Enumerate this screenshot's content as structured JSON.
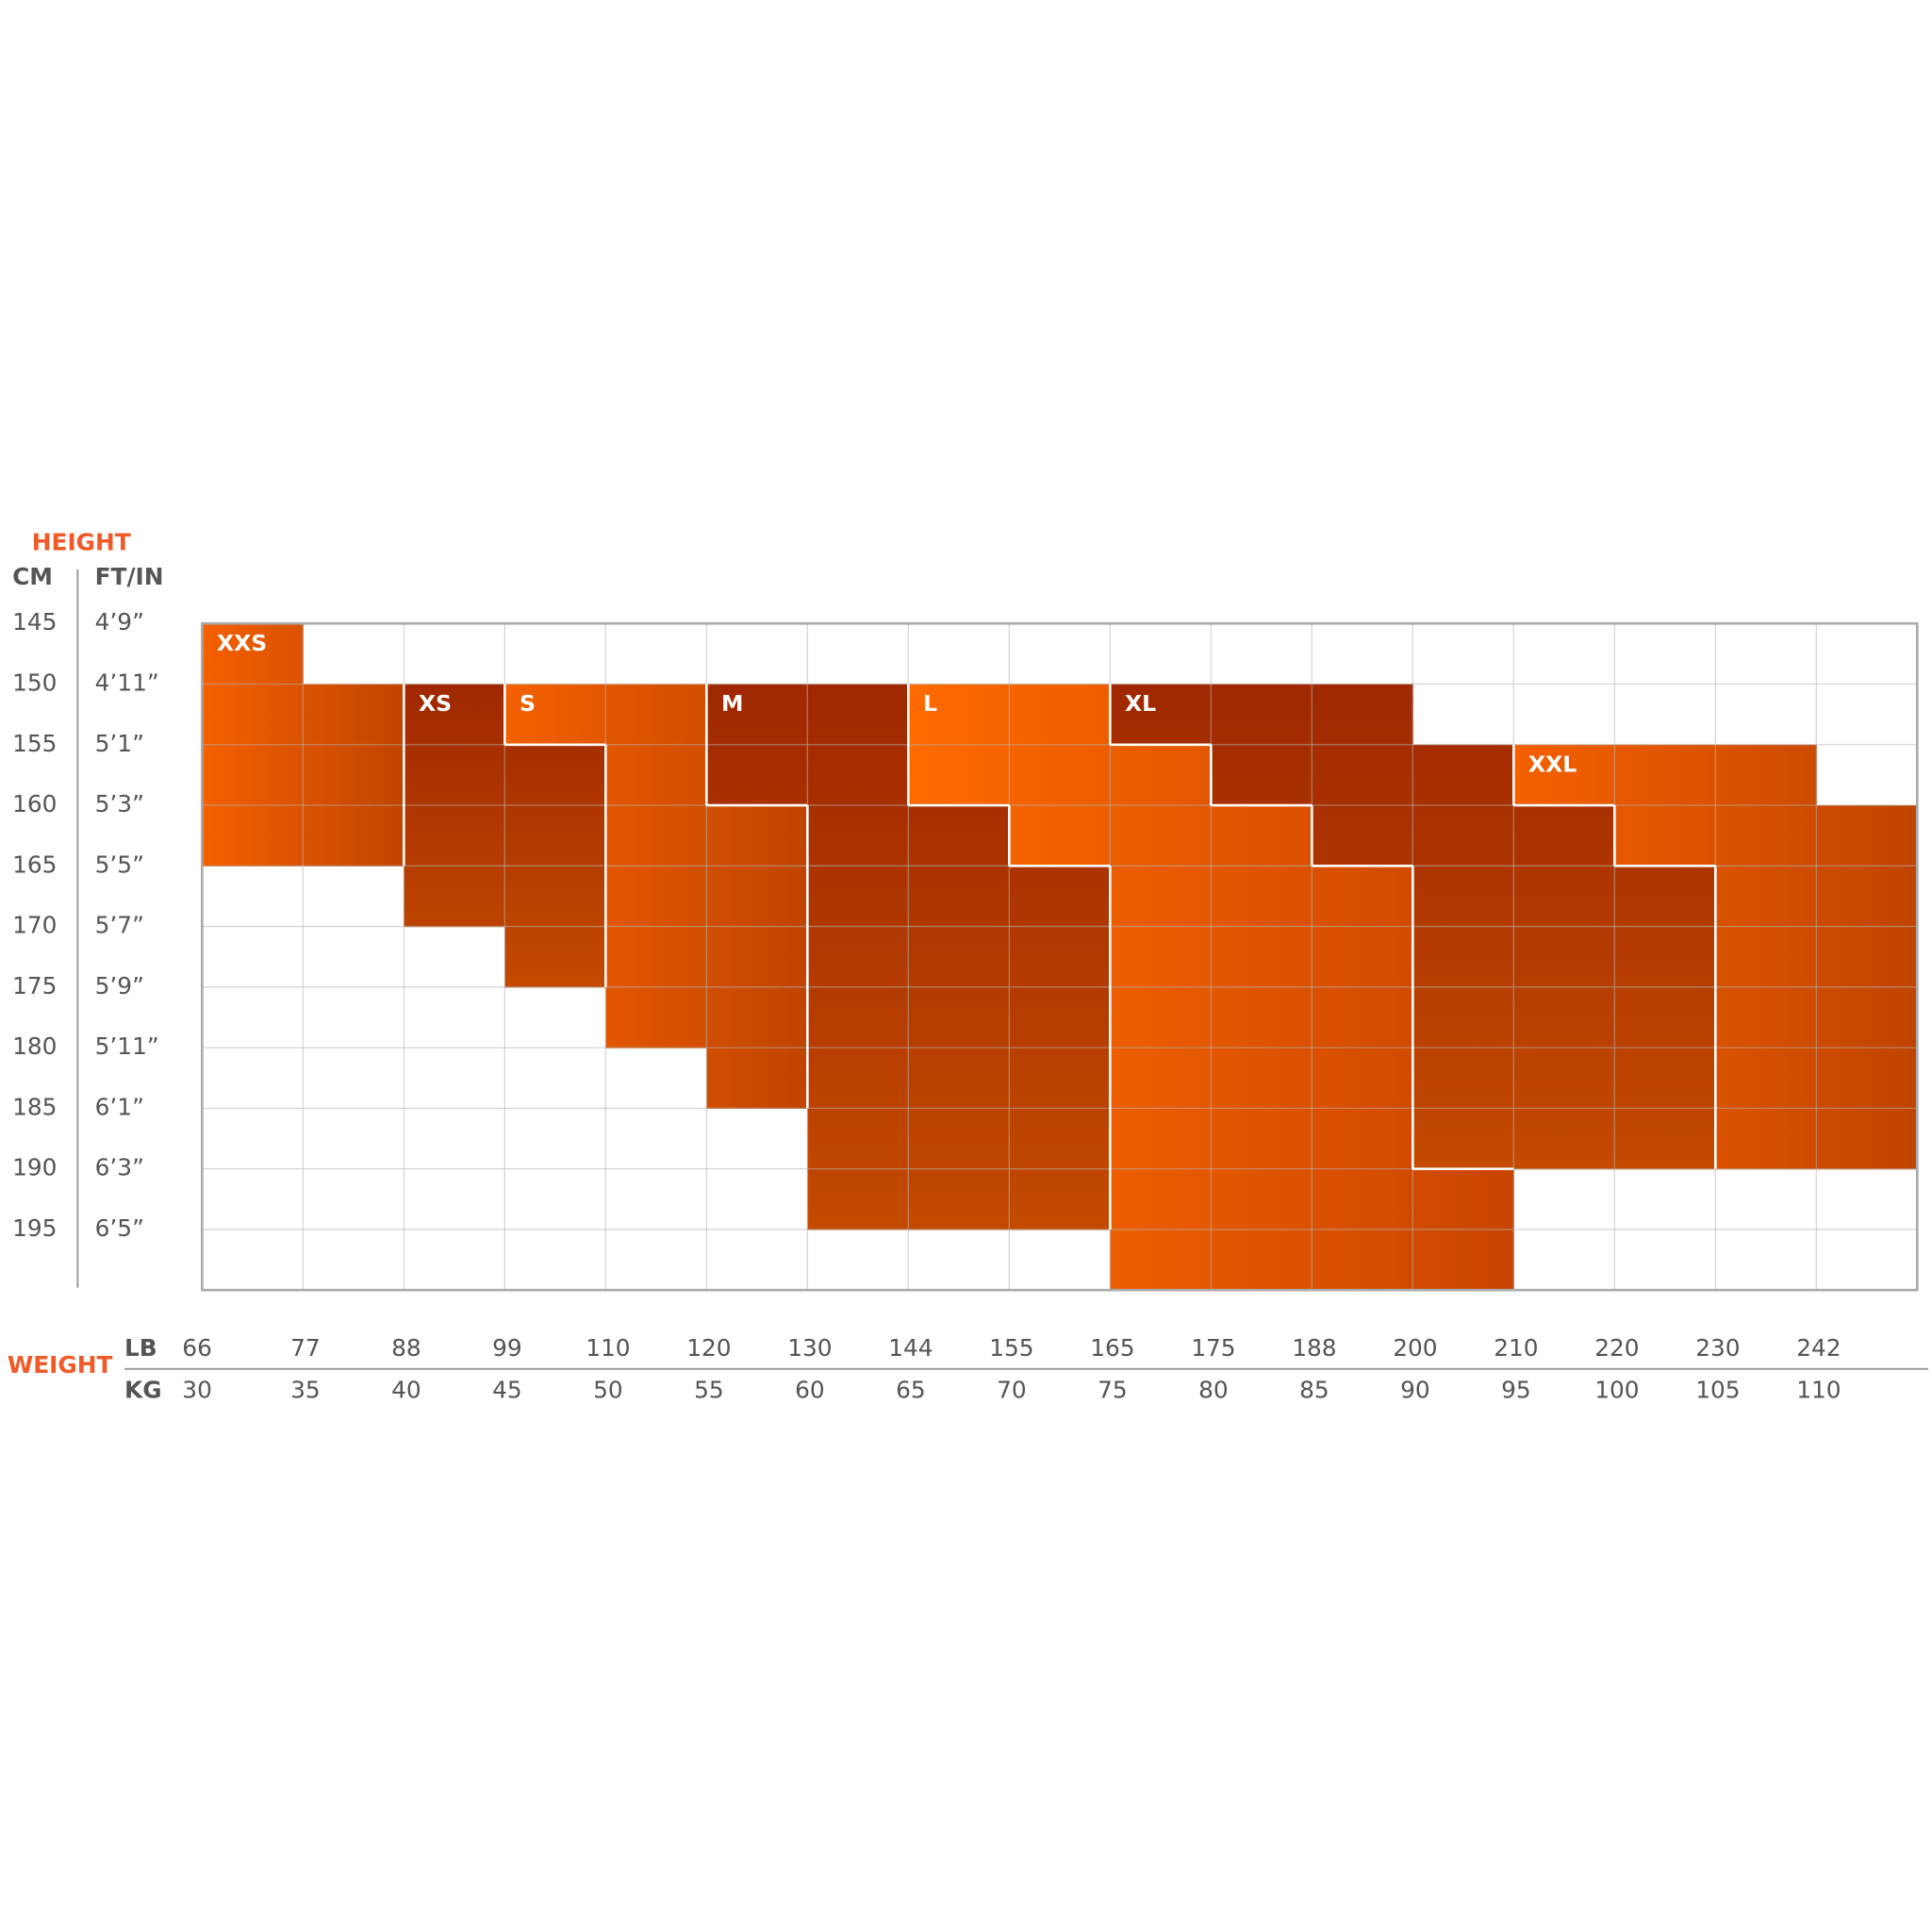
{
  "height": {
    "title": "HEIGHT",
    "cm_header": "CM",
    "ftin_header": "FT/IN",
    "rows": [
      {
        "cm": 145,
        "ftin": "4’9”"
      },
      {
        "cm": 150,
        "ftin": "4’11”"
      },
      {
        "cm": 155,
        "ftin": "5’1”"
      },
      {
        "cm": 160,
        "ftin": "5’3”"
      },
      {
        "cm": 165,
        "ftin": "5’5”"
      },
      {
        "cm": 170,
        "ftin": "5’7”"
      },
      {
        "cm": 175,
        "ftin": "5’9”"
      },
      {
        "cm": 180,
        "ftin": "5’11”"
      },
      {
        "cm": 185,
        "ftin": "6’1”"
      },
      {
        "cm": 190,
        "ftin": "6’3”"
      },
      {
        "cm": 195,
        "ftin": "6’5”"
      }
    ]
  },
  "weight": {
    "title": "WEIGHT",
    "lb_header": "LB",
    "kg_header": "KG",
    "columns": [
      {
        "lb": 66,
        "kg": 30
      },
      {
        "lb": 77,
        "kg": 35
      },
      {
        "lb": 88,
        "kg": 40
      },
      {
        "lb": 99,
        "kg": 45
      },
      {
        "lb": 110,
        "kg": 50
      },
      {
        "lb": 120,
        "kg": 55
      },
      {
        "lb": 130,
        "kg": 60
      },
      {
        "lb": 144,
        "kg": 65
      },
      {
        "lb": 155,
        "kg": 70
      },
      {
        "lb": 165,
        "kg": 75
      },
      {
        "lb": 175,
        "kg": 80
      },
      {
        "lb": 188,
        "kg": 85
      },
      {
        "lb": 200,
        "kg": 90
      },
      {
        "lb": 210,
        "kg": 95
      },
      {
        "lb": 220,
        "kg": 100
      },
      {
        "lb": 230,
        "kg": 105
      },
      {
        "lb": 242,
        "kg": 110
      }
    ]
  },
  "sizes": [
    "XXS",
    "XS",
    "S",
    "M",
    "L",
    "XL",
    "XXL"
  ]
}
